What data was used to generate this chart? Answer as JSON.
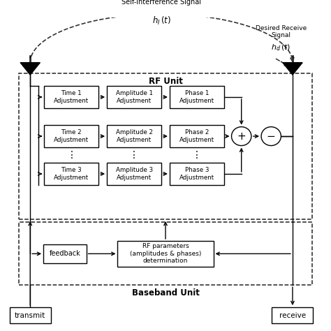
{
  "bg_color": "#ffffff",
  "box_color": "#ffffff",
  "box_edge_color": "#000000",
  "line_color": "#000000",
  "dashed_color": "#555555",
  "rf_unit_label": "RF Unit",
  "baseband_label": "Baseband Unit",
  "si_signal_label": "Self-interference Signal",
  "si_math_label": "$h_I\\,(t)$",
  "desired_label": "Desired Receive\nSignal",
  "desired_math_label": "$h_d\\,(t)$",
  "transmit_label": "transmit",
  "receive_label": "receive",
  "feedback_label": "feedback",
  "rf_params_label": "RF parameters\n(amplitudes & phases)\ndetermination",
  "rows": [
    {
      "time": "Time 1\nAdjustment",
      "amp": "Amplitude 1\nAdjustment",
      "phase": "Phase 1\nAdjustment"
    },
    {
      "time": "Time 2\nAdjustment",
      "amp": "Amplitude 2\nAdjustment",
      "phase": "Phase 2\nAdjustment"
    },
    {
      "time": "Time 3\nAdjustment",
      "amp": "Amplitude 3\nAdjustment",
      "phase": "Phase 3\nAdjustment"
    }
  ]
}
